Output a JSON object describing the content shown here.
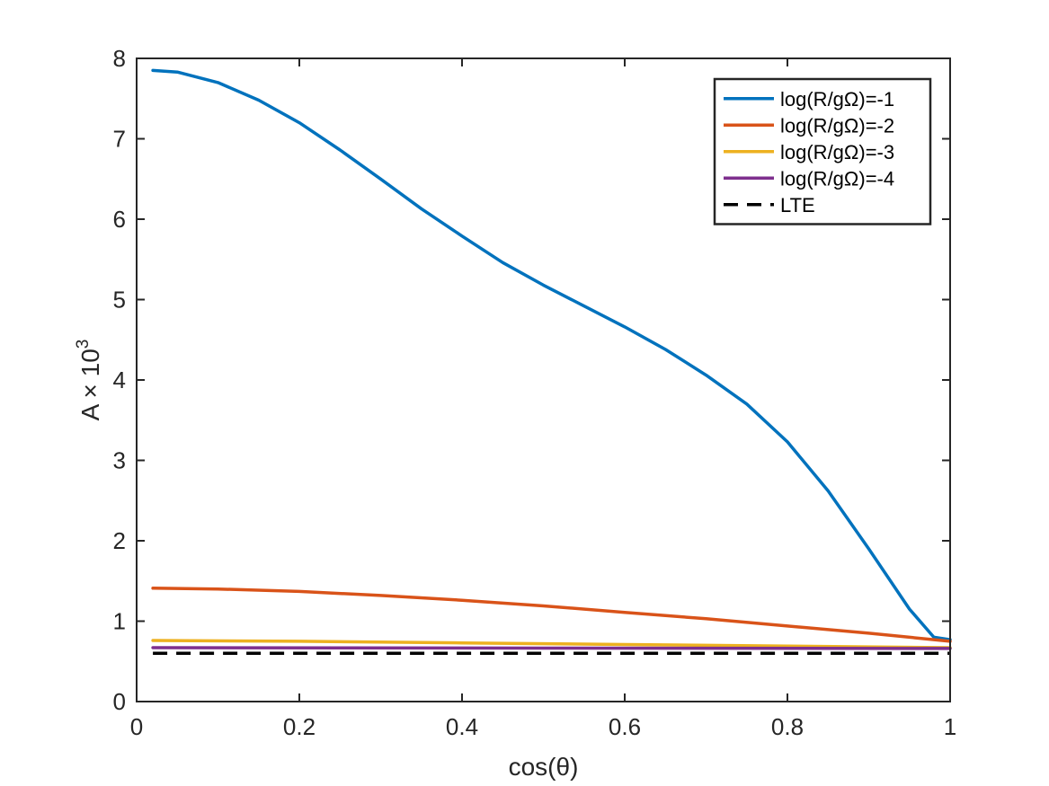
{
  "chart_data": {
    "type": "line",
    "title": "",
    "xlabel": "cos(θ)",
    "ylabel": {
      "base": "A × 10",
      "exponent": "3"
    },
    "xlim": [
      0,
      1
    ],
    "ylim": [
      0,
      8
    ],
    "xticks": [
      0,
      0.2,
      0.4,
      0.6,
      0.8,
      1
    ],
    "xtick_labels": [
      "0",
      "0.2",
      "0.4",
      "0.6",
      "0.8",
      "1"
    ],
    "yticks": [
      0,
      1,
      2,
      3,
      4,
      5,
      6,
      7,
      8
    ],
    "ytick_labels": [
      "0",
      "1",
      "2",
      "3",
      "4",
      "5",
      "6",
      "7",
      "8"
    ],
    "grid": false,
    "legend_position": "top-right",
    "series": [
      {
        "name": "log(R/gΩ)=-1",
        "color": "#0072BD",
        "style": "solid",
        "x": [
          0.02,
          0.05,
          0.1,
          0.15,
          0.2,
          0.25,
          0.3,
          0.35,
          0.4,
          0.45,
          0.5,
          0.55,
          0.6,
          0.65,
          0.7,
          0.75,
          0.8,
          0.85,
          0.9,
          0.95,
          0.98,
          1.0
        ],
        "y": [
          7.85,
          7.83,
          7.7,
          7.48,
          7.2,
          6.86,
          6.5,
          6.13,
          5.79,
          5.46,
          5.18,
          4.92,
          4.66,
          4.38,
          4.06,
          3.7,
          3.23,
          2.62,
          1.9,
          1.15,
          0.8,
          0.77
        ]
      },
      {
        "name": "log(R/gΩ)=-2",
        "color": "#D95319",
        "style": "solid",
        "x": [
          0.02,
          0.1,
          0.2,
          0.3,
          0.4,
          0.5,
          0.6,
          0.7,
          0.8,
          0.9,
          1.0
        ],
        "y": [
          1.41,
          1.4,
          1.37,
          1.32,
          1.26,
          1.19,
          1.11,
          1.03,
          0.94,
          0.85,
          0.75
        ]
      },
      {
        "name": "log(R/gΩ)=-3",
        "color": "#EDB120",
        "style": "solid",
        "x": [
          0.02,
          0.2,
          0.4,
          0.6,
          0.8,
          1.0
        ],
        "y": [
          0.76,
          0.75,
          0.73,
          0.71,
          0.69,
          0.67
        ]
      },
      {
        "name": "log(R/gΩ)=-4",
        "color": "#7E2F8E",
        "style": "solid",
        "x": [
          0.02,
          0.5,
          1.0
        ],
        "y": [
          0.67,
          0.665,
          0.66
        ]
      },
      {
        "name": "LTE",
        "color": "#000000",
        "style": "dashed",
        "x": [
          0.02,
          1.0
        ],
        "y": [
          0.6,
          0.6
        ]
      }
    ]
  }
}
